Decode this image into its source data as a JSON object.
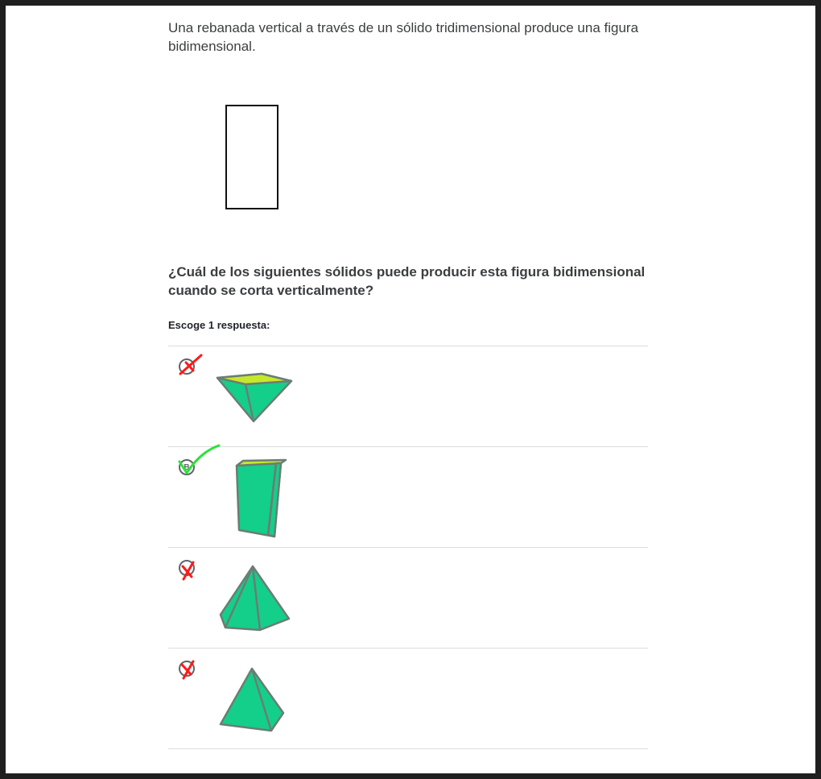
{
  "intro_text": "Una rebanada vertical a través de un sólido tridimensional produce una figura bidimensional.",
  "question_text": "¿Cuál de los siguientes sólidos puede producir esta figura bidimensional cuando se corta verticalmente?",
  "instruction_text": "Escoge 1 respuesta:",
  "colors": {
    "face": "#13cf8a",
    "top_face": "#c7e82a",
    "edge": "#6b7d75",
    "correct": "#28e43a",
    "incorrect": "#ff1a1a"
  },
  "choices": [
    {
      "letter": "A",
      "solid": "inverted-square-pyramid",
      "status": "incorrect"
    },
    {
      "letter": "B",
      "solid": "rectangular-prism",
      "status": "correct"
    },
    {
      "letter": "C",
      "solid": "pentagonal-pyramid",
      "status": "incorrect"
    },
    {
      "letter": "D",
      "solid": "square-pyramid",
      "status": "incorrect"
    }
  ]
}
